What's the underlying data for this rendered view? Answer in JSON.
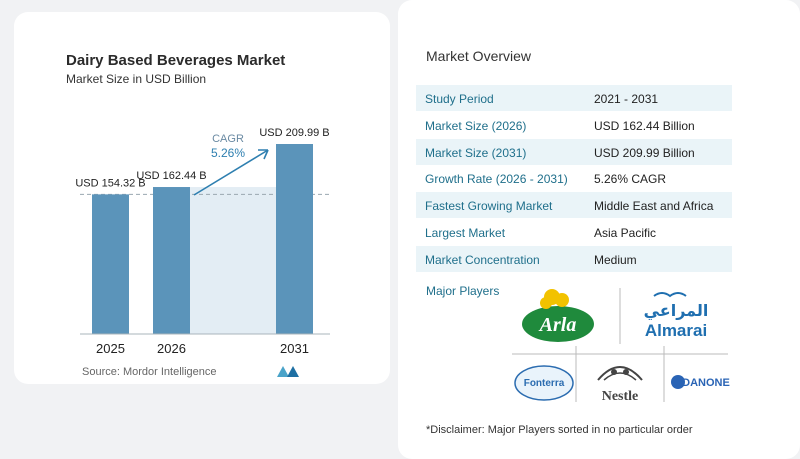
{
  "chart_data": {
    "type": "bar",
    "title": "Dairy Based Beverages Market",
    "subtitle": "Market Size in USD Billion",
    "categories": [
      "2025",
      "2026",
      "2031"
    ],
    "values": [
      154.32,
      162.44,
      209.99
    ],
    "value_labels": [
      "USD 154.32 B",
      "USD 162.44 B",
      "USD 209.99 B"
    ],
    "cagr_label": "CAGR",
    "cagr_value": "5.26%",
    "bar_color": "#5b94ba",
    "accent_color": "#2e7fb0"
  },
  "source": "Source: Mordor Intelligence",
  "overview": {
    "title": "Market Overview",
    "rows": [
      {
        "key": "Study Period",
        "value": "2021 - 2031"
      },
      {
        "key": "Market Size (2026)",
        "value": "USD 162.44 Billion"
      },
      {
        "key": "Market Size (2031)",
        "value": "USD 209.99 Billion"
      },
      {
        "key": "Growth Rate (2026 - 2031)",
        "value": "5.26% CAGR"
      },
      {
        "key": "Fastest Growing Market",
        "value": "Middle East and Africa"
      },
      {
        "key": "Largest Market",
        "value": "Asia Pacific"
      },
      {
        "key": "Market Concentration",
        "value": "Medium"
      }
    ]
  },
  "major_players": {
    "title": "Major Players",
    "logos": [
      "Arla",
      "المراعي",
      "Almarai",
      "Fonterra",
      "Nestle",
      "DANONE"
    ]
  },
  "disclaimer": "*Disclaimer: Major Players sorted in no particular order"
}
